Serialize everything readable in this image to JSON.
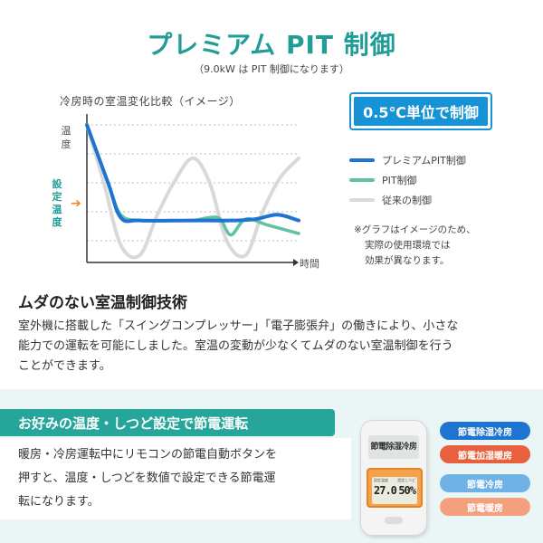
{
  "header": {
    "title": "プレミアム PIT 制御",
    "subtitle": "（9.0kW は PIT 制御になります）"
  },
  "chart_section": {
    "caption": "冷房時の室温変化比較（イメージ）",
    "badge": "0.5℃単位で制御",
    "y_axis_label": "温度",
    "set_temp_label": "設定温度",
    "set_temp_arrow": "➔",
    "x_axis_label": "時間",
    "legend": [
      {
        "label": "プレミアムPIT制御",
        "color": "#1e74d0"
      },
      {
        "label": "PIT制御",
        "color": "#5fc2a2"
      },
      {
        "label": "従来の制御",
        "color": "#d9d9d9"
      }
    ],
    "note_lines": [
      "※グラフはイメージのため、",
      "実際の使用環境では",
      "効果が異なります。"
    ]
  },
  "chart_data": {
    "type": "line",
    "title": "",
    "xlabel": "時間",
    "ylabel": "温度",
    "grid": true,
    "series": [
      {
        "name": "従来の制御",
        "color": "#d9d9d9",
        "x": [
          0,
          0.08,
          0.16,
          0.25,
          0.33,
          0.41,
          0.5,
          0.58,
          0.66,
          0.75,
          0.83,
          0.91,
          1.0
        ],
        "y": [
          0.95,
          0.55,
          0.12,
          0.05,
          0.32,
          0.55,
          0.72,
          0.55,
          0.15,
          0.05,
          0.35,
          0.58,
          0.72
        ]
      },
      {
        "name": "PIT制御",
        "color": "#5fc2a2",
        "x": [
          0,
          0.1,
          0.16,
          0.25,
          0.4,
          0.5,
          0.58,
          0.63,
          0.68,
          0.75,
          0.85,
          1.0
        ],
        "y": [
          0.95,
          0.55,
          0.33,
          0.29,
          0.29,
          0.29,
          0.31,
          0.3,
          0.19,
          0.3,
          0.26,
          0.2
        ]
      },
      {
        "name": "プレミアムPIT制御",
        "color": "#1e74d0",
        "x": [
          0,
          0.1,
          0.16,
          0.25,
          0.5,
          0.7,
          0.8,
          0.9,
          1.0
        ],
        "y": [
          0.95,
          0.55,
          0.31,
          0.29,
          0.29,
          0.29,
          0.3,
          0.33,
          0.29
        ]
      }
    ]
  },
  "main_section": {
    "heading": "ムダのない室温制御技術",
    "body_lines": [
      "室外機に搭載した「スイングコンプレッサー」「電子膨張弁」の働きにより、小さな",
      "能力での運転を可能にしました。室温の変動が少なくてムダのない室温制御を行う",
      "ことができます。"
    ]
  },
  "bottom_section": {
    "tag": "お好みの温度・しつど設定で節電運転",
    "body_lines": [
      "暖房・冷房運転中にリモコンの節電自動ボタンを",
      "押すと、温度・しつどを数値で設定できる節電運",
      "転になります。"
    ],
    "remote": {
      "top_label": "節電除湿冷房",
      "screen_labels": [
        "設定温度",
        "設定しつど"
      ],
      "screen_values": [
        "27.0",
        "50%"
      ]
    },
    "mode_buttons": [
      {
        "label": "節電除湿冷房",
        "color": "#1e74d0"
      },
      {
        "label": "節電加湿暖房",
        "color": "#e8613f"
      },
      {
        "label": "節電冷房",
        "color": "#6fb3e6"
      },
      {
        "label": "節電暖房",
        "color": "#f2a07e"
      }
    ]
  }
}
